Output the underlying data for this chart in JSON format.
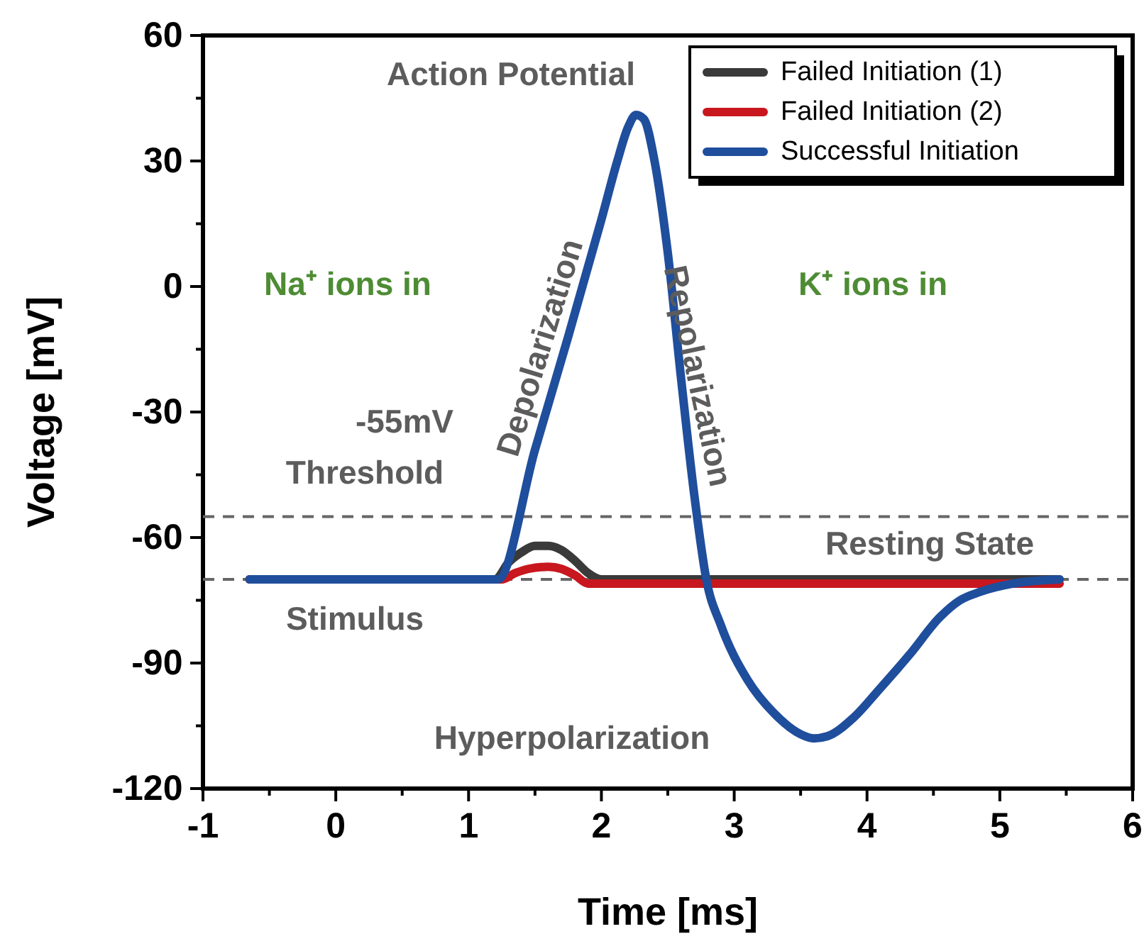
{
  "chart_data": {
    "type": "line",
    "xlabel": "Time [ms]",
    "ylabel": "Voltage [mV]",
    "xlim": [
      -1,
      6
    ],
    "xticks": [
      -1,
      {
        "value": -0.5,
        "label": null
      },
      0,
      {
        "value": 0.5,
        "label": null
      },
      1,
      {
        "value": 1.5,
        "label": null
      },
      2,
      {
        "value": 2.5,
        "label": null
      },
      3,
      {
        "value": 3.5,
        "label": null
      },
      4,
      {
        "value": 4.5,
        "label": null
      },
      5,
      {
        "value": 5.5,
        "label": null
      },
      6
    ],
    "ylim": [
      -120,
      60
    ],
    "yticks": [
      -120,
      {
        "value": -105,
        "label": null
      },
      -90,
      {
        "value": -75,
        "label": null
      },
      -60,
      {
        "value": -45,
        "label": null
      },
      -30,
      {
        "value": -15,
        "label": null
      },
      0,
      {
        "value": 15,
        "label": null
      },
      30,
      {
        "value": 45,
        "label": null
      },
      60
    ],
    "legend": "top right",
    "line_style": "solid",
    "marker": "none",
    "series": [
      {
        "name": "Failed Initiation (1)",
        "color": "#3a3a3a",
        "x": [
          -0.65,
          1.2,
          1.3,
          1.4,
          1.5,
          1.6,
          1.7,
          1.8,
          1.9,
          2.0,
          5.45
        ],
        "values": [
          -70,
          -70,
          -66,
          -63.5,
          -62,
          -62,
          -63,
          -65.5,
          -68.5,
          -70,
          -70
        ]
      },
      {
        "name": "Failed Initiation (2)",
        "color": "#c8171e",
        "x": [
          -0.65,
          1.25,
          1.35,
          1.45,
          1.6,
          1.7,
          1.8,
          1.9,
          2.0,
          5.45
        ],
        "values": [
          -70,
          -70,
          -68.5,
          -67.5,
          -67,
          -67.5,
          -69,
          -71,
          -71,
          -71
        ]
      },
      {
        "name": "Successful Initiation",
        "color": "#1f4e9c",
        "x": [
          -0.65,
          1.1,
          1.2,
          1.22,
          1.5,
          1.75,
          2.0,
          2.12,
          2.2,
          2.26,
          2.32,
          2.4,
          2.5,
          2.6,
          2.7,
          2.79,
          2.9,
          3.1,
          3.3,
          3.5,
          3.6,
          3.7,
          3.9,
          4.1,
          4.32,
          4.55,
          4.7,
          4.85,
          5.1,
          5.45
        ],
        "values": [
          -70,
          -70,
          -70,
          -70,
          -39,
          -12,
          16,
          30,
          38,
          41,
          40,
          30,
          8,
          -22,
          -50,
          -70,
          -81,
          -94,
          -102,
          -107,
          -108,
          -107.5,
          -103,
          -96,
          -88,
          -79,
          -75,
          -73,
          -71,
          -70
        ]
      }
    ],
    "ref_lines": [
      {
        "axis": "y",
        "value": -55,
        "color": "#666666",
        "line_style": "dashed"
      },
      {
        "axis": "y",
        "value": -70,
        "color": "#666666",
        "line_style": "dashed"
      }
    ],
    "annotations": [
      "Action Potential",
      "Depolarization",
      "Repolarization",
      "Na⁺ ions in",
      "K⁺ ions in",
      "-55mV",
      "Threshold",
      "Resting State",
      "Stimulus",
      "Hyperpolarization"
    ]
  }
}
